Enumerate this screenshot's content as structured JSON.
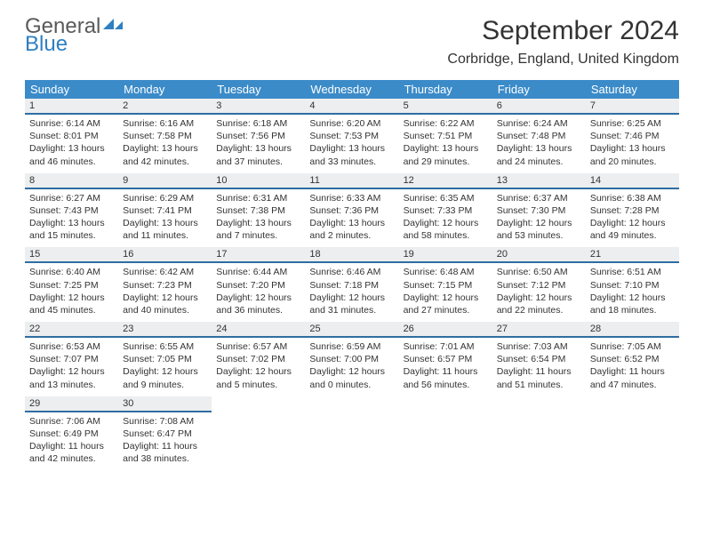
{
  "logo": {
    "text1": "General",
    "text2": "Blue",
    "text1_color": "#5a5a5a",
    "text2_color": "#2f7fc1",
    "flag_color": "#2f7fc1"
  },
  "title": "September 2024",
  "location": "Corbridge, England, United Kingdom",
  "header_bg": "#3b8bc9",
  "header_fg": "#ffffff",
  "daynum_bg": "#eceeef",
  "daynum_border": "#2f6da3",
  "weekdays": [
    "Sunday",
    "Monday",
    "Tuesday",
    "Wednesday",
    "Thursday",
    "Friday",
    "Saturday"
  ],
  "weeks": [
    [
      {
        "n": "1",
        "sr": "6:14 AM",
        "ss": "8:01 PM",
        "dl": "13 hours and 46 minutes."
      },
      {
        "n": "2",
        "sr": "6:16 AM",
        "ss": "7:58 PM",
        "dl": "13 hours and 42 minutes."
      },
      {
        "n": "3",
        "sr": "6:18 AM",
        "ss": "7:56 PM",
        "dl": "13 hours and 37 minutes."
      },
      {
        "n": "4",
        "sr": "6:20 AM",
        "ss": "7:53 PM",
        "dl": "13 hours and 33 minutes."
      },
      {
        "n": "5",
        "sr": "6:22 AM",
        "ss": "7:51 PM",
        "dl": "13 hours and 29 minutes."
      },
      {
        "n": "6",
        "sr": "6:24 AM",
        "ss": "7:48 PM",
        "dl": "13 hours and 24 minutes."
      },
      {
        "n": "7",
        "sr": "6:25 AM",
        "ss": "7:46 PM",
        "dl": "13 hours and 20 minutes."
      }
    ],
    [
      {
        "n": "8",
        "sr": "6:27 AM",
        "ss": "7:43 PM",
        "dl": "13 hours and 15 minutes."
      },
      {
        "n": "9",
        "sr": "6:29 AM",
        "ss": "7:41 PM",
        "dl": "13 hours and 11 minutes."
      },
      {
        "n": "10",
        "sr": "6:31 AM",
        "ss": "7:38 PM",
        "dl": "13 hours and 7 minutes."
      },
      {
        "n": "11",
        "sr": "6:33 AM",
        "ss": "7:36 PM",
        "dl": "13 hours and 2 minutes."
      },
      {
        "n": "12",
        "sr": "6:35 AM",
        "ss": "7:33 PM",
        "dl": "12 hours and 58 minutes."
      },
      {
        "n": "13",
        "sr": "6:37 AM",
        "ss": "7:30 PM",
        "dl": "12 hours and 53 minutes."
      },
      {
        "n": "14",
        "sr": "6:38 AM",
        "ss": "7:28 PM",
        "dl": "12 hours and 49 minutes."
      }
    ],
    [
      {
        "n": "15",
        "sr": "6:40 AM",
        "ss": "7:25 PM",
        "dl": "12 hours and 45 minutes."
      },
      {
        "n": "16",
        "sr": "6:42 AM",
        "ss": "7:23 PM",
        "dl": "12 hours and 40 minutes."
      },
      {
        "n": "17",
        "sr": "6:44 AM",
        "ss": "7:20 PM",
        "dl": "12 hours and 36 minutes."
      },
      {
        "n": "18",
        "sr": "6:46 AM",
        "ss": "7:18 PM",
        "dl": "12 hours and 31 minutes."
      },
      {
        "n": "19",
        "sr": "6:48 AM",
        "ss": "7:15 PM",
        "dl": "12 hours and 27 minutes."
      },
      {
        "n": "20",
        "sr": "6:50 AM",
        "ss": "7:12 PM",
        "dl": "12 hours and 22 minutes."
      },
      {
        "n": "21",
        "sr": "6:51 AM",
        "ss": "7:10 PM",
        "dl": "12 hours and 18 minutes."
      }
    ],
    [
      {
        "n": "22",
        "sr": "6:53 AM",
        "ss": "7:07 PM",
        "dl": "12 hours and 13 minutes."
      },
      {
        "n": "23",
        "sr": "6:55 AM",
        "ss": "7:05 PM",
        "dl": "12 hours and 9 minutes."
      },
      {
        "n": "24",
        "sr": "6:57 AM",
        "ss": "7:02 PM",
        "dl": "12 hours and 5 minutes."
      },
      {
        "n": "25",
        "sr": "6:59 AM",
        "ss": "7:00 PM",
        "dl": "12 hours and 0 minutes."
      },
      {
        "n": "26",
        "sr": "7:01 AM",
        "ss": "6:57 PM",
        "dl": "11 hours and 56 minutes."
      },
      {
        "n": "27",
        "sr": "7:03 AM",
        "ss": "6:54 PM",
        "dl": "11 hours and 51 minutes."
      },
      {
        "n": "28",
        "sr": "7:05 AM",
        "ss": "6:52 PM",
        "dl": "11 hours and 47 minutes."
      }
    ],
    [
      {
        "n": "29",
        "sr": "7:06 AM",
        "ss": "6:49 PM",
        "dl": "11 hours and 42 minutes."
      },
      {
        "n": "30",
        "sr": "7:08 AM",
        "ss": "6:47 PM",
        "dl": "11 hours and 38 minutes."
      },
      null,
      null,
      null,
      null,
      null
    ]
  ],
  "labels": {
    "sunrise": "Sunrise: ",
    "sunset": "Sunset: ",
    "daylight": "Daylight: "
  }
}
